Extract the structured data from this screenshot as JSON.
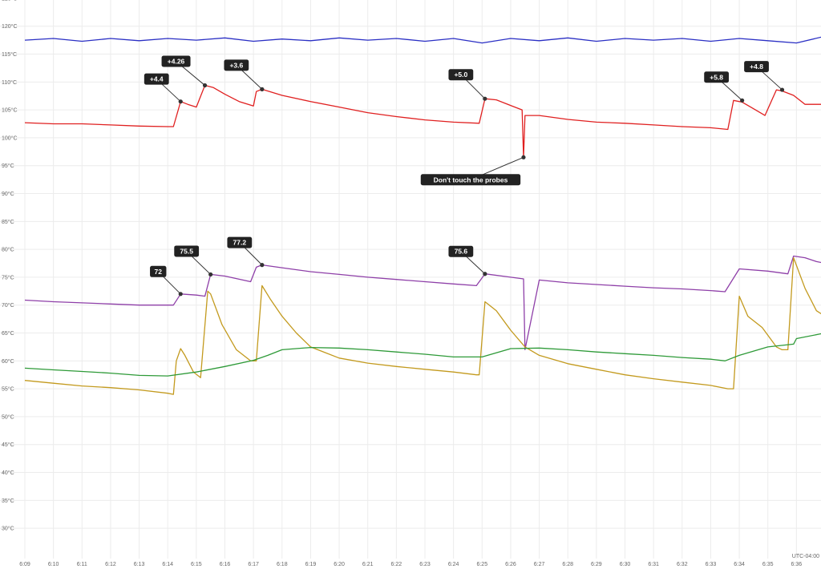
{
  "chart_data": {
    "type": "line",
    "title": "",
    "xlabel": "",
    "ylabel": "",
    "timezone_label": "UTC-04:00",
    "y_unit": "°C",
    "ylim": [
      27,
      127
    ],
    "xlim": [
      "6:09",
      "6:37"
    ],
    "grid": true,
    "x_ticks": [
      "6:09",
      "6:10",
      "6:11",
      "6:12",
      "6:13",
      "6:14",
      "6:15",
      "6:16",
      "6:17",
      "6:18",
      "6:19",
      "6:20",
      "6:21",
      "6:22",
      "6:23",
      "6:24",
      "6:25",
      "6:26",
      "6:27",
      "6:28",
      "6:29",
      "6:30",
      "6:31",
      "6:32",
      "6:33",
      "6:34",
      "6:35",
      "6:36"
    ],
    "y_ticks": [
      {
        "v": 125,
        "label": "125°C"
      },
      {
        "v": 120,
        "label": "120°C"
      },
      {
        "v": 115,
        "label": "115°C"
      },
      {
        "v": 110,
        "label": "110°C"
      },
      {
        "v": 105,
        "label": "105°C"
      },
      {
        "v": 100,
        "label": "100°C"
      },
      {
        "v": 95,
        "label": "95°C"
      },
      {
        "v": 90,
        "label": "90°C"
      },
      {
        "v": 85,
        "label": "85°C"
      },
      {
        "v": 80,
        "label": "80°C"
      },
      {
        "v": 75,
        "label": "75°C"
      },
      {
        "v": 70,
        "label": "70°C"
      },
      {
        "v": 65,
        "label": "65°C"
      },
      {
        "v": 60,
        "label": "60°C"
      },
      {
        "v": 55,
        "label": "55°C"
      },
      {
        "v": 50,
        "label": "50°C"
      },
      {
        "v": 45,
        "label": "45°C"
      },
      {
        "v": 40,
        "label": "40°C"
      },
      {
        "v": 35,
        "label": "35°C"
      },
      {
        "v": 30,
        "label": "30°C"
      }
    ],
    "series": [
      {
        "color": "#2a2fc4",
        "x": [
          "6:09",
          "6:10",
          "6:11",
          "6:12",
          "6:13",
          "6:14",
          "6:15",
          "6:16",
          "6:17",
          "6:18",
          "6:19",
          "6:20",
          "6:21",
          "6:22",
          "6:23",
          "6:24",
          "6:25",
          "6:26",
          "6:27",
          "6:28",
          "6:29",
          "6:30",
          "6:31",
          "6:32",
          "6:33",
          "6:34",
          "6:35",
          "6:36",
          "6:37"
        ],
        "y": [
          117.5,
          117.8,
          117.3,
          117.8,
          117.4,
          117.8,
          117.5,
          117.9,
          117.3,
          117.7,
          117.4,
          117.9,
          117.5,
          117.8,
          117.3,
          117.8,
          117.0,
          117.8,
          117.4,
          117.9,
          117.3,
          117.8,
          117.5,
          117.8,
          117.3,
          117.8,
          117.4,
          117.0,
          118.2
        ]
      },
      {
        "color": "#e02020",
        "x": [
          "6:09",
          "6:10",
          "6:11",
          "6:12",
          "6:13",
          "6:14",
          "6:14.2",
          "6:14.45",
          "6:14.7",
          "6:15.0",
          "6:15.3",
          "6:15.6",
          "6:16",
          "6:16.5",
          "6:17.0",
          "6:17.1",
          "6:17.3",
          "6:18",
          "6:19",
          "6:20",
          "6:21",
          "6:22",
          "6:23",
          "6:24",
          "6:24.9",
          "6:25.1",
          "6:25.5",
          "6:26",
          "6:26.4",
          "6:26.45",
          "6:26.5",
          "6:27",
          "6:28",
          "6:29",
          "6:30",
          "6:31",
          "6:32",
          "6:33",
          "6:33.6",
          "6:33.8",
          "6:34.1",
          "6:34.5",
          "6:34.9",
          "6:35.3",
          "6:35.5",
          "6:35.9",
          "6:36.3",
          "6:36.7",
          "6:37"
        ],
        "y": [
          102.7,
          102.5,
          102.5,
          102.3,
          102.1,
          102.0,
          102.0,
          106.5,
          106.0,
          105.5,
          109.4,
          109.0,
          107.8,
          106.5,
          105.7,
          108.3,
          108.7,
          107.6,
          106.5,
          105.5,
          104.5,
          103.8,
          103.2,
          102.8,
          102.6,
          107.0,
          106.8,
          105.8,
          105.0,
          96.5,
          104.0,
          104.0,
          103.3,
          102.8,
          102.6,
          102.3,
          102.0,
          101.8,
          101.5,
          106.7,
          106.4,
          105.2,
          104.0,
          108.6,
          108.4,
          107.6,
          106.0,
          106.0,
          106.0
        ]
      },
      {
        "color": "#8e3fa8",
        "x": [
          "6:09",
          "6:10",
          "6:11",
          "6:12",
          "6:13",
          "6:14",
          "6:14.2",
          "6:14.45",
          "6:15.0",
          "6:15.3",
          "6:15.5",
          "6:16",
          "6:16.9",
          "6:17.1",
          "6:17.3",
          "6:18",
          "6:19",
          "6:20",
          "6:21",
          "6:22",
          "6:23",
          "6:24",
          "6:24.8",
          "6:25.1",
          "6:26",
          "6:26.45",
          "6:26.5",
          "6:27",
          "6:28",
          "6:29",
          "6:30",
          "6:31",
          "6:32",
          "6:33",
          "6:33.5",
          "6:34",
          "6:35",
          "6:35.7",
          "6:35.9",
          "6:36.3",
          "6:36.7",
          "6:37"
        ],
        "y": [
          70.9,
          70.6,
          70.4,
          70.2,
          70.0,
          70.0,
          70.0,
          72.0,
          71.8,
          71.6,
          75.5,
          75.2,
          74.2,
          76.8,
          77.2,
          76.7,
          76.0,
          75.5,
          75.0,
          74.6,
          74.2,
          73.8,
          73.5,
          75.6,
          75.0,
          74.7,
          62.0,
          74.5,
          74.0,
          73.7,
          73.4,
          73.1,
          72.9,
          72.6,
          72.4,
          76.5,
          76.1,
          75.6,
          78.8,
          78.5,
          77.8,
          77.5
        ]
      },
      {
        "color": "#c39a1e",
        "x": [
          "6:09",
          "6:10",
          "6:11",
          "6:12",
          "6:13",
          "6:14",
          "6:14.2",
          "6:14.3",
          "6:14.45",
          "6:14.6",
          "6:14.9",
          "6:15.15",
          "6:15.4",
          "6:15.5",
          "6:15.9",
          "6:16.4",
          "6:16.9",
          "6:17.1",
          "6:17.3",
          "6:17.6",
          "6:18",
          "6:18.5",
          "6:19",
          "6:19.5",
          "6:20",
          "6:21",
          "6:22",
          "6:23",
          "6:24",
          "6:24.8",
          "6:24.9",
          "6:25.1",
          "6:25.5",
          "6:26",
          "6:26.5",
          "6:27",
          "6:28",
          "6:29",
          "6:30",
          "6:31",
          "6:32",
          "6:33",
          "6:33.6",
          "6:33.8",
          "6:34.0",
          "6:34.3",
          "6:34.8",
          "6:35.3",
          "6:35.5",
          "6:35.7",
          "6:35.9",
          "6:36.3",
          "6:36.7",
          "6:37"
        ],
        "y": [
          56.5,
          56.0,
          55.5,
          55.2,
          54.8,
          54.2,
          54.0,
          60.0,
          62.2,
          61.0,
          58.0,
          57.0,
          72.5,
          72.0,
          66.5,
          62.0,
          60.0,
          60.0,
          73.5,
          71.0,
          68.0,
          65.0,
          62.5,
          61.5,
          60.5,
          59.6,
          59.0,
          58.5,
          58.0,
          57.5,
          57.5,
          70.6,
          69.0,
          65.5,
          62.5,
          61.0,
          59.5,
          58.5,
          57.5,
          56.8,
          56.2,
          55.6,
          55.0,
          55.0,
          71.6,
          68.0,
          66.0,
          62.5,
          62.0,
          62.0,
          78.5,
          73.0,
          69.0,
          68.0
        ]
      },
      {
        "color": "#2e9a38",
        "x": [
          "6:09",
          "6:10",
          "6:11",
          "6:12",
          "6:13",
          "6:14",
          "6:15",
          "6:16",
          "6:17",
          "6:17.5",
          "6:18",
          "6:19",
          "6:20",
          "6:21",
          "6:22",
          "6:23",
          "6:24",
          "6:25",
          "6:26",
          "6:27",
          "6:28",
          "6:29",
          "6:30",
          "6:31",
          "6:32",
          "6:33",
          "6:33.5",
          "6:34",
          "6:35",
          "6:35.9",
          "6:36",
          "6:37"
        ],
        "y": [
          58.7,
          58.4,
          58.1,
          57.8,
          57.4,
          57.3,
          58.0,
          59.0,
          60.1,
          61.0,
          62.0,
          62.4,
          62.3,
          62.0,
          61.6,
          61.2,
          60.7,
          60.7,
          62.2,
          62.3,
          62.0,
          61.6,
          61.3,
          61.0,
          60.6,
          60.3,
          60.0,
          61.0,
          62.5,
          63.0,
          64.0,
          65.0
        ]
      }
    ],
    "annotations": [
      {
        "label": "+4.4",
        "x": "6:14.45",
        "y": 106.5,
        "dx": -30,
        "dy": -28
      },
      {
        "label": "+4.26",
        "x": "6:15.3",
        "y": 109.4,
        "dx": -36,
        "dy": -30
      },
      {
        "label": "+3.6",
        "x": "6:17.3",
        "y": 108.7,
        "dx": -32,
        "dy": -30
      },
      {
        "label": "+5.0",
        "x": "6:25.1",
        "y": 107.0,
        "dx": -30,
        "dy": -30
      },
      {
        "label": "Don't touch the probes",
        "x": "6:26.45",
        "y": 96.5,
        "dx": -66,
        "dy": 28
      },
      {
        "label": "+5.8",
        "x": "6:34.1",
        "y": 106.7,
        "dx": -32,
        "dy": -29
      },
      {
        "label": "+4.8",
        "x": "6:35.5",
        "y": 108.6,
        "dx": -32,
        "dy": -29
      },
      {
        "label": "72",
        "x": "6:14.45",
        "y": 72.0,
        "dx": -28,
        "dy": -28
      },
      {
        "label": "75.5",
        "x": "6:15.5",
        "y": 75.5,
        "dx": -30,
        "dy": -29
      },
      {
        "label": "77.2",
        "x": "6:17.3",
        "y": 77.2,
        "dx": -28,
        "dy": -28
      },
      {
        "label": "75.6",
        "x": "6:25.1",
        "y": 75.6,
        "dx": -30,
        "dy": -28
      }
    ]
  }
}
